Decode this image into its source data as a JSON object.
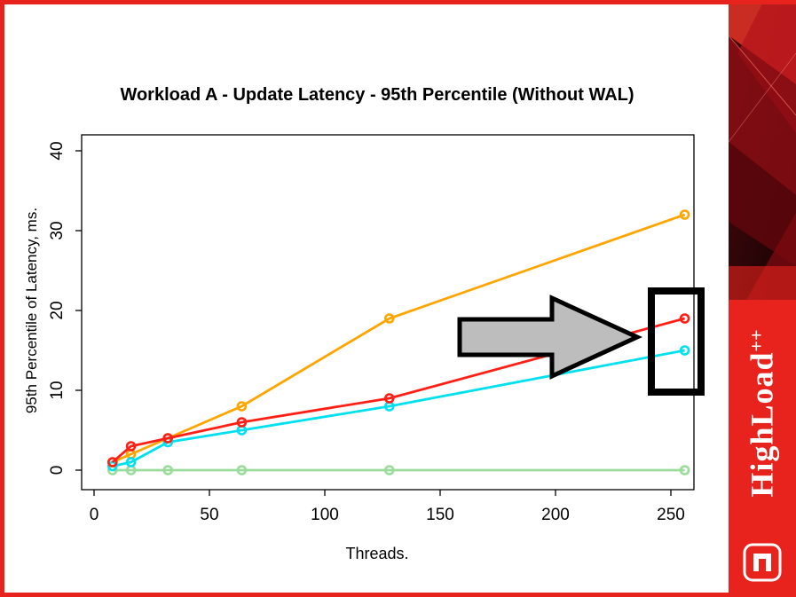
{
  "chart_data": {
    "type": "line",
    "title": "Workload A - Update Latency - 95th Percentile (Without WAL)",
    "xlabel": "Threads.",
    "ylabel": "95th Percentile of Latency, ms.",
    "xlim": [
      0,
      265
    ],
    "ylim": [
      0,
      40
    ],
    "xticks": [
      0,
      50,
      100,
      150,
      200,
      250
    ],
    "yticks": [
      0,
      10,
      20,
      30,
      40
    ],
    "grid": false,
    "legend": "none",
    "x": [
      8,
      16,
      32,
      64,
      128,
      256
    ],
    "series": [
      {
        "name": "green-flat",
        "color": "#9BDB9B",
        "values": [
          0,
          0,
          0,
          0,
          0,
          0
        ]
      },
      {
        "name": "orange",
        "color": "#FFA500",
        "values": [
          1,
          2,
          4,
          8,
          19,
          32
        ]
      },
      {
        "name": "cyan",
        "color": "#00E0EE",
        "values": [
          0.5,
          1,
          3.5,
          5,
          8,
          15
        ]
      },
      {
        "name": "red",
        "color": "#FF1F14",
        "values": [
          1,
          3,
          4,
          6,
          9,
          19
        ]
      }
    ],
    "annotations": [
      {
        "type": "arrow",
        "color": "#BDBDBD",
        "description": "large gray arrow pointing right toward the 256-thread results"
      },
      {
        "type": "box",
        "color": "#000000",
        "description": "black rectangle outlining the red and cyan data points at 256 threads"
      }
    ]
  },
  "sidebar": {
    "brand": "HighLoad",
    "brand_suffix": "++",
    "brand_color": "#E8231D"
  }
}
